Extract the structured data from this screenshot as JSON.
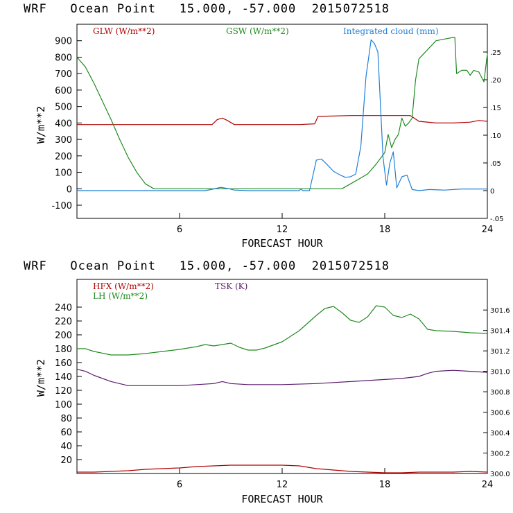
{
  "chart_data": [
    {
      "type": "line",
      "title": "WRF   Ocean Point   15.000, -57.000  2015072518",
      "xlabel": "FORECAST HOUR",
      "ylabel": "W/m**2",
      "xlim": [
        0,
        24
      ],
      "ylim": [
        -180,
        1000
      ],
      "xticks": [
        "6",
        "12",
        "18",
        "24"
      ],
      "yticks": [
        "-100",
        "0",
        "100",
        "200",
        "300",
        "400",
        "500",
        "600",
        "700",
        "800",
        "900"
      ],
      "y2lim": [
        -0.05,
        0.3
      ],
      "y2ticks": [
        ".25",
        ".20",
        ".15",
        ".10",
        ".05",
        "0",
        "-.05"
      ],
      "legend_placement": "top",
      "series": [
        {
          "name": "GLW (W/m**2)",
          "color": "#b00000",
          "axis": "left",
          "x": [
            0,
            2,
            4,
            6,
            7.9,
            8.2,
            8.5,
            8.8,
            9.2,
            10,
            12,
            13,
            13.9,
            14.1,
            16,
            18,
            19.5,
            20,
            21,
            22,
            23,
            23.5,
            24
          ],
          "y": [
            390,
            390,
            390,
            390,
            390,
            420,
            430,
            415,
            390,
            390,
            390,
            390,
            395,
            440,
            445,
            445,
            445,
            410,
            400,
            400,
            405,
            415,
            410
          ]
        },
        {
          "name": "GSW (W/m**2)",
          "color": "#1f8a1f",
          "axis": "left",
          "x": [
            0,
            0.5,
            1,
            1.5,
            2,
            2.5,
            3,
            3.5,
            4,
            4.5,
            6,
            12,
            15.5,
            16,
            16.5,
            17,
            17.5,
            18,
            18.2,
            18.4,
            18.6,
            18.8,
            19,
            19.2,
            19.4,
            19.6,
            19.8,
            20,
            21,
            22,
            22.1,
            22.2,
            22.5,
            22.8,
            23,
            23.2,
            23.5,
            23.8,
            24
          ],
          "y": [
            800,
            740,
            640,
            530,
            420,
            300,
            190,
            100,
            30,
            0,
            0,
            0,
            0,
            30,
            60,
            90,
            150,
            220,
            330,
            250,
            300,
            330,
            430,
            380,
            400,
            430,
            660,
            790,
            900,
            920,
            920,
            700,
            720,
            720,
            690,
            720,
            710,
            650,
            820
          ]
        },
        {
          "name": "Integrated cloud (mm)",
          "color": "#1e7fd8",
          "axis": "right",
          "x": [
            0,
            7.5,
            8,
            8.4,
            8.8,
            9.2,
            10,
            12,
            13,
            13.1,
            13.2,
            13.6,
            14,
            14.3,
            14.6,
            15,
            15.4,
            15.7,
            16,
            16.3,
            16.6,
            16.9,
            17.2,
            17.4,
            17.6,
            17.9,
            18.1,
            18.3,
            18.5,
            18.7,
            19,
            19.3,
            19.6,
            20,
            20.6,
            21.5,
            22.5,
            24
          ],
          "y": [
            0,
            0,
            0.003,
            0.006,
            0.004,
            0.001,
            0,
            0,
            0,
            0.003,
            0,
            0,
            0.055,
            0.057,
            0.048,
            0.035,
            0.028,
            0.024,
            0.025,
            0.03,
            0.08,
            0.205,
            0.272,
            0.265,
            0.25,
            0.06,
            0.01,
            0.05,
            0.07,
            0.005,
            0.025,
            0.028,
            0.002,
            0,
            0.002,
            0.001,
            0.003,
            0.003
          ]
        }
      ]
    },
    {
      "type": "line",
      "title": "WRF   Ocean Point   15.000, -57.000  2015072518",
      "xlabel": "FORECAST HOUR",
      "ylabel": "W/m**2",
      "xlim": [
        0,
        24
      ],
      "ylim": [
        0,
        280
      ],
      "xticks": [
        "6",
        "12",
        "18",
        "24"
      ],
      "yticks": [
        "20",
        "40",
        "60",
        "80",
        "100",
        "120",
        "140",
        "160",
        "180",
        "200",
        "220",
        "240"
      ],
      "y2lim": [
        300.0,
        301.9
      ],
      "y2ticks": [
        "301.6",
        "301.4",
        "301.2",
        "301.0",
        "300.8",
        "300.6",
        "300.4",
        "300.2",
        "300.0"
      ],
      "legend_placement": "top",
      "series": [
        {
          "name": "HFX (W/m**2)",
          "color": "#b00000",
          "axis": "left",
          "x": [
            0,
            1,
            2,
            3,
            4,
            5,
            6,
            7,
            8,
            9,
            10,
            11,
            12,
            13,
            14,
            15,
            16,
            17,
            18,
            19,
            20,
            21,
            22,
            23,
            24
          ],
          "y": [
            2,
            2,
            3,
            4,
            6,
            7,
            8,
            10,
            11,
            12,
            12,
            12,
            12,
            11,
            7,
            5,
            3,
            2,
            1,
            1,
            2,
            2,
            2,
            3,
            2
          ]
        },
        {
          "name": "LH (W/m**2)",
          "color": "#1f8a1f",
          "axis": "left",
          "x": [
            0,
            0.5,
            1,
            2,
            3,
            4,
            5,
            6,
            7,
            7.5,
            8,
            8.5,
            9,
            9.5,
            10,
            10.5,
            11,
            12,
            13,
            14,
            14.5,
            15,
            15.5,
            16,
            16.5,
            17,
            17.5,
            18,
            18.5,
            19,
            19.5,
            20,
            20.5,
            21,
            22,
            23,
            24
          ],
          "y": [
            180,
            180,
            176,
            171,
            171,
            173,
            176,
            179,
            183,
            186,
            184,
            186,
            188,
            182,
            178,
            178,
            181,
            190,
            206,
            228,
            238,
            241,
            232,
            221,
            218,
            226,
            242,
            240,
            228,
            225,
            230,
            223,
            208,
            206,
            205,
            203,
            202
          ]
        },
        {
          "name": "TSK (K)",
          "color": "#5a1a6a",
          "axis": "right",
          "x": [
            0,
            0.5,
            1,
            2,
            3,
            4,
            5,
            6,
            7,
            8,
            8.5,
            9,
            10,
            12,
            14,
            16,
            18,
            19,
            20,
            20.5,
            21,
            22,
            23,
            24
          ],
          "y": [
            301.02,
            301.0,
            300.96,
            300.9,
            300.86,
            300.86,
            300.86,
            300.86,
            300.87,
            300.88,
            300.9,
            300.88,
            300.87,
            300.87,
            300.88,
            300.9,
            300.92,
            300.93,
            300.95,
            300.98,
            301.0,
            301.01,
            301.0,
            300.99
          ]
        }
      ]
    }
  ]
}
